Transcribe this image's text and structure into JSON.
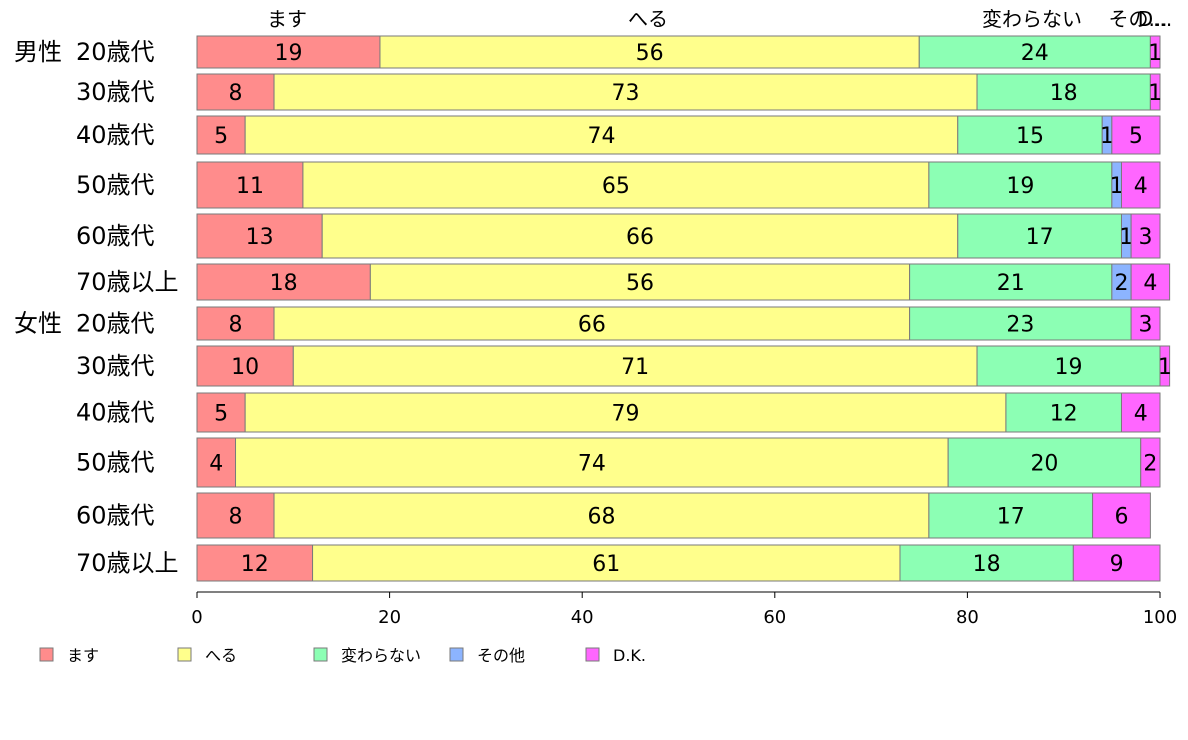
{
  "chart_data": {
    "type": "bar",
    "orientation": "horizontal",
    "stacked": true,
    "series": [
      {
        "name": "ます",
        "color": "#ff8c8c",
        "values": [
          19,
          8,
          5,
          11,
          13,
          18,
          8,
          10,
          5,
          4,
          8,
          12
        ]
      },
      {
        "name": "へる",
        "color": "#ffff8c",
        "values": [
          56,
          73,
          74,
          65,
          66,
          56,
          66,
          71,
          79,
          74,
          68,
          61
        ]
      },
      {
        "name": "変わらない",
        "color": "#8cffb4",
        "values": [
          24,
          18,
          15,
          19,
          17,
          21,
          23,
          19,
          12,
          20,
          17,
          18
        ]
      },
      {
        "name": "その他",
        "color": "#8cb4ff",
        "values": [
          0,
          0,
          1,
          1,
          1,
          2,
          0,
          0,
          0,
          0,
          0,
          0
        ]
      },
      {
        "name": "D.K.",
        "color": "#ff66ff",
        "values": [
          1,
          1,
          5,
          4,
          3,
          4,
          3,
          1,
          4,
          2,
          6,
          9
        ]
      }
    ],
    "categories": [
      {
        "group": "男性",
        "label": "20歳代"
      },
      {
        "group": "",
        "label": "30歳代"
      },
      {
        "group": "",
        "label": "40歳代"
      },
      {
        "group": "",
        "label": "50歳代"
      },
      {
        "group": "",
        "label": "60歳代"
      },
      {
        "group": "",
        "label": "70歳以上"
      },
      {
        "group": "女性",
        "label": "20歳代"
      },
      {
        "group": "",
        "label": "30歳代"
      },
      {
        "group": "",
        "label": "40歳代"
      },
      {
        "group": "",
        "label": "50歳代"
      },
      {
        "group": "",
        "label": "60歳代"
      },
      {
        "group": "",
        "label": "70歳以上"
      }
    ],
    "xlim": [
      0,
      100
    ],
    "xticks": [
      0,
      20,
      40,
      60,
      80,
      100
    ],
    "top_labels": [
      "ます",
      "へる",
      "変わらない",
      "その他",
      "D.K."
    ],
    "top_labels_display": [
      "ます",
      "へる",
      "変わらない",
      "その...",
      "D..."
    ],
    "legend_position": "bottom-left",
    "grid": false,
    "title": "",
    "xlabel": "",
    "ylabel": ""
  }
}
